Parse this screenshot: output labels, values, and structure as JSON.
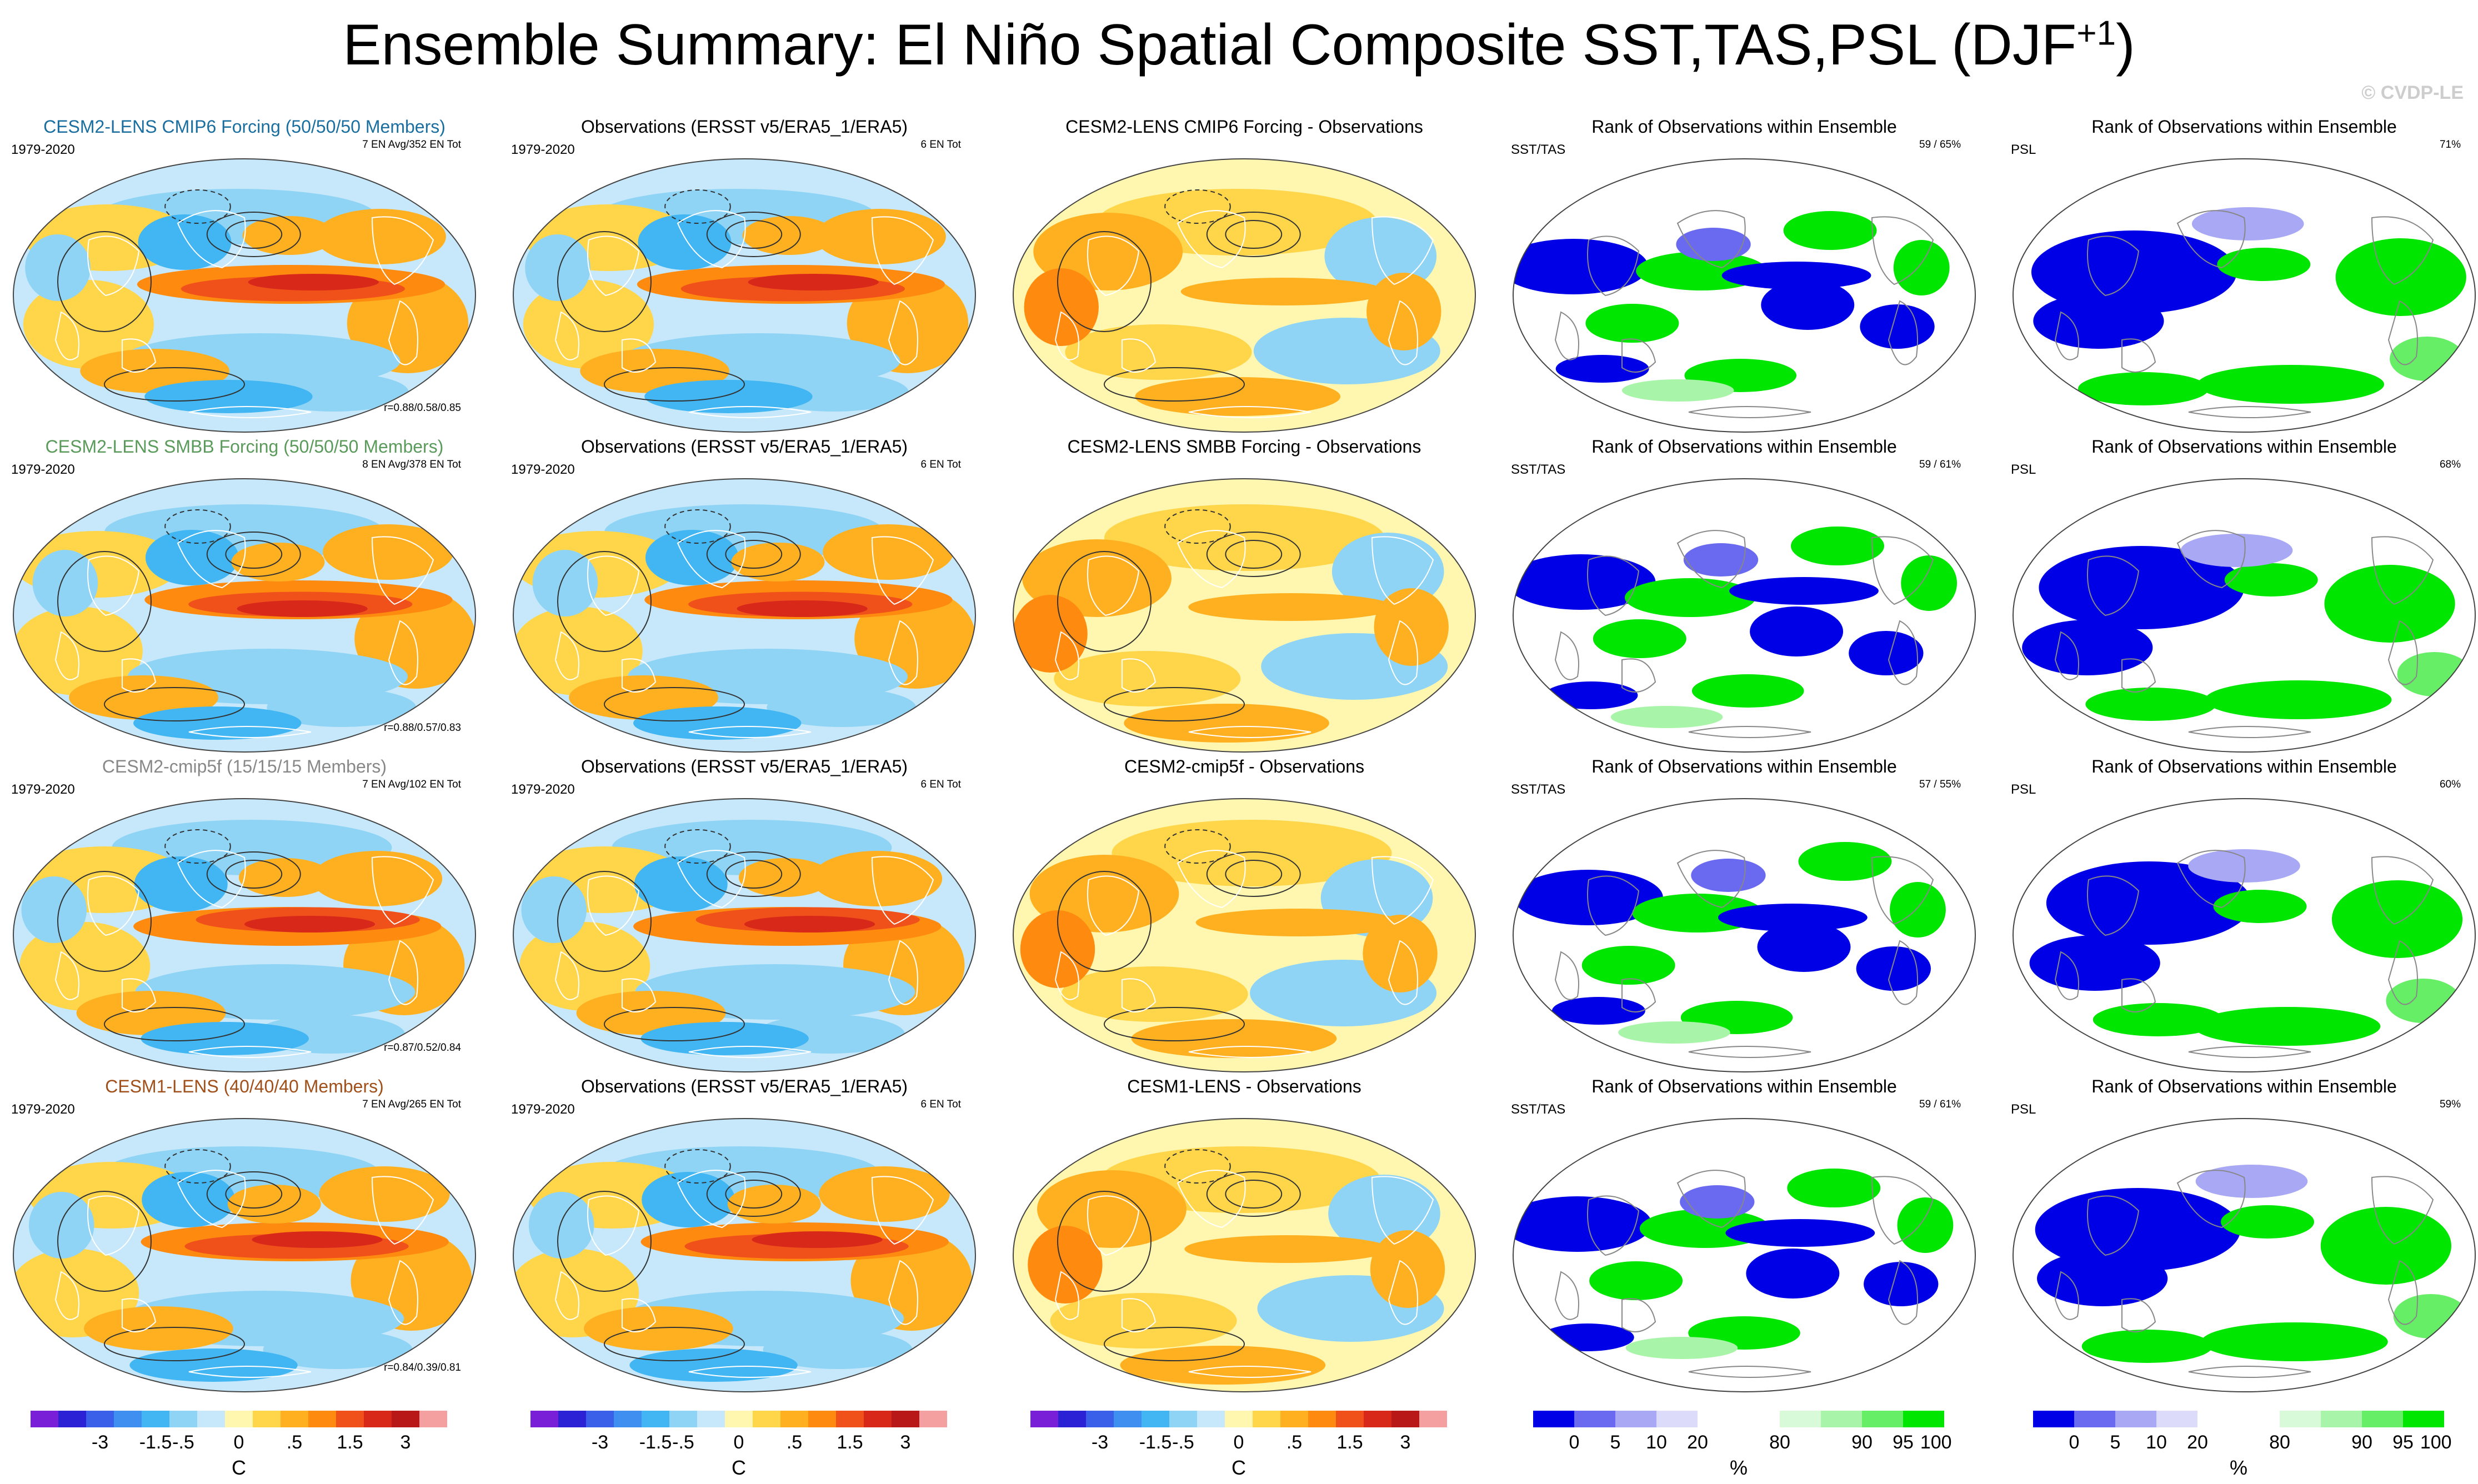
{
  "figure": {
    "title_main": "Ensemble Summary: El Niño Spatial Composite SST,TAS,PSL (DJF",
    "title_sup": "+1",
    "title_close": ")",
    "watermark": "© CVDP-LE"
  },
  "colors": {
    "ens_title": [
      "#1a6fa0",
      "#5a9a5a",
      "#888888",
      "#a0501a"
    ],
    "temp_scale": [
      "#7a1fd8",
      "#2b22d6",
      "#3a5fe8",
      "#3f8ff0",
      "#41b6f2",
      "#8fd4f5",
      "#c6e8fa",
      "#fff7b0",
      "#ffd54a",
      "#ffb020",
      "#ff8a10",
      "#f0501a",
      "#d8281a",
      "#b81818",
      "#f5a0a0"
    ],
    "rank_scale": [
      "#0000e6",
      "#6a6af0",
      "#a8a8f4",
      "#dcdcfa",
      "#ffffff",
      "#ffffff",
      "#d9fad9",
      "#a8f4a8",
      "#66ee66",
      "#00e600"
    ]
  },
  "chart_data": {
    "type": "heatmap",
    "rows": [
      {
        "ensemble": {
          "title": "CESM2-LENS CMIP6 Forcing (50/50/50 Members)",
          "period": "1979-2020",
          "events": "7 EN Avg/352 EN Tot",
          "pattern_corr": "r=0.88/0.58/0.85"
        },
        "observations": {
          "title": "Observations (ERSST v5/ERA5_1/ERA5)",
          "period": "1979-2020",
          "events": "6 EN Tot"
        },
        "difference": {
          "title": "CESM2-LENS CMIP6 Forcing - Observations"
        },
        "rank_sst_tas": {
          "title": "Rank of Observations within Ensemble",
          "label": "SST/TAS",
          "stat": "59 /  65%"
        },
        "rank_psl": {
          "title": "Rank of Observations within Ensemble",
          "label": "PSL",
          "stat": "71%"
        }
      },
      {
        "ensemble": {
          "title": "CESM2-LENS SMBB Forcing (50/50/50 Members)",
          "period": "1979-2020",
          "events": "8 EN Avg/378 EN Tot",
          "pattern_corr": "r=0.88/0.57/0.83"
        },
        "observations": {
          "title": "Observations (ERSST v5/ERA5_1/ERA5)",
          "period": "1979-2020",
          "events": "6 EN Tot"
        },
        "difference": {
          "title": "CESM2-LENS SMBB Forcing - Observations"
        },
        "rank_sst_tas": {
          "title": "Rank of Observations within Ensemble",
          "label": "SST/TAS",
          "stat": "59 /  61%"
        },
        "rank_psl": {
          "title": "Rank of Observations within Ensemble",
          "label": "PSL",
          "stat": "68%"
        }
      },
      {
        "ensemble": {
          "title": "CESM2-cmip5f (15/15/15 Members)",
          "period": "1979-2020",
          "events": "7 EN Avg/102 EN Tot",
          "pattern_corr": "r=0.87/0.52/0.84"
        },
        "observations": {
          "title": "Observations (ERSST v5/ERA5_1/ERA5)",
          "period": "1979-2020",
          "events": "6 EN Tot"
        },
        "difference": {
          "title": "CESM2-cmip5f - Observations"
        },
        "rank_sst_tas": {
          "title": "Rank of Observations within Ensemble",
          "label": "SST/TAS",
          "stat": "57 /  55%"
        },
        "rank_psl": {
          "title": "Rank of Observations within Ensemble",
          "label": "PSL",
          "stat": "60%"
        }
      },
      {
        "ensemble": {
          "title": "CESM1-LENS (40/40/40 Members)",
          "period": "1979-2020",
          "events": "7 EN Avg/265 EN Tot",
          "pattern_corr": "r=0.84/0.39/0.81"
        },
        "observations": {
          "title": "Observations (ERSST v5/ERA5_1/ERA5)",
          "period": "1979-2020",
          "events": "6 EN Tot"
        },
        "difference": {
          "title": "CESM1-LENS - Observations"
        },
        "rank_sst_tas": {
          "title": "Rank of Observations within Ensemble",
          "label": "SST/TAS",
          "stat": "59 /  61%"
        },
        "rank_psl": {
          "title": "Rank of Observations within Ensemble",
          "label": "PSL",
          "stat": "59%"
        }
      }
    ],
    "temperature_colorbar": {
      "ticks": [
        "-3",
        "-1.5",
        "-.5",
        "0",
        ".5",
        "1.5",
        "3"
      ],
      "unit": "C"
    },
    "rank_colorbar": {
      "ticks": [
        "0",
        "5",
        "10",
        "20",
        "80",
        "90",
        "95",
        "100"
      ],
      "unit": "%"
    }
  }
}
